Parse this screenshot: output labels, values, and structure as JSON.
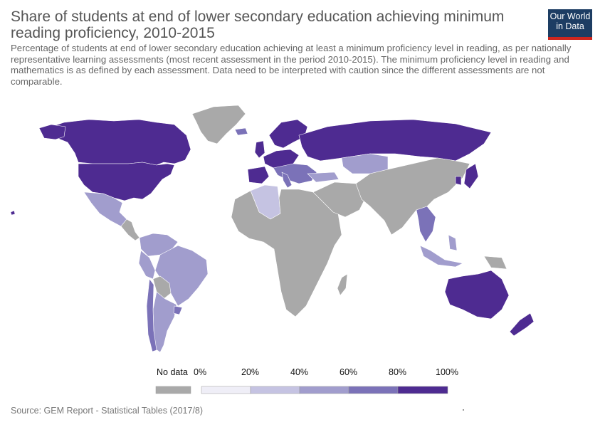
{
  "title": "Share of students at end of lower secondary education achieving minimum reading proficiency, 2010-2015",
  "subtitle": "Percentage of students at end of lower secondary education achieving at least a minimum proficiency level in reading, as per nationally representative learning assessments (most recent assessment in the period 2010-2015). The minimum proficiency level in reading and mathematics is as defined by each assessment. Data need to be interpreted with caution since the different assessments are not comparable.",
  "logo": {
    "line1": "Our World",
    "line2": "in Data"
  },
  "legend": {
    "no_data_label": "No data",
    "ticks": [
      "0%",
      "20%",
      "40%",
      "60%",
      "80%",
      "100%"
    ],
    "colors": [
      "#efeef7",
      "#c5c3e2",
      "#a19dcd",
      "#7b72b8",
      "#4e2b91"
    ],
    "no_data_color": "#a9a9a9"
  },
  "source": "Source: GEM Report - Statistical Tables (2017/8)"
}
